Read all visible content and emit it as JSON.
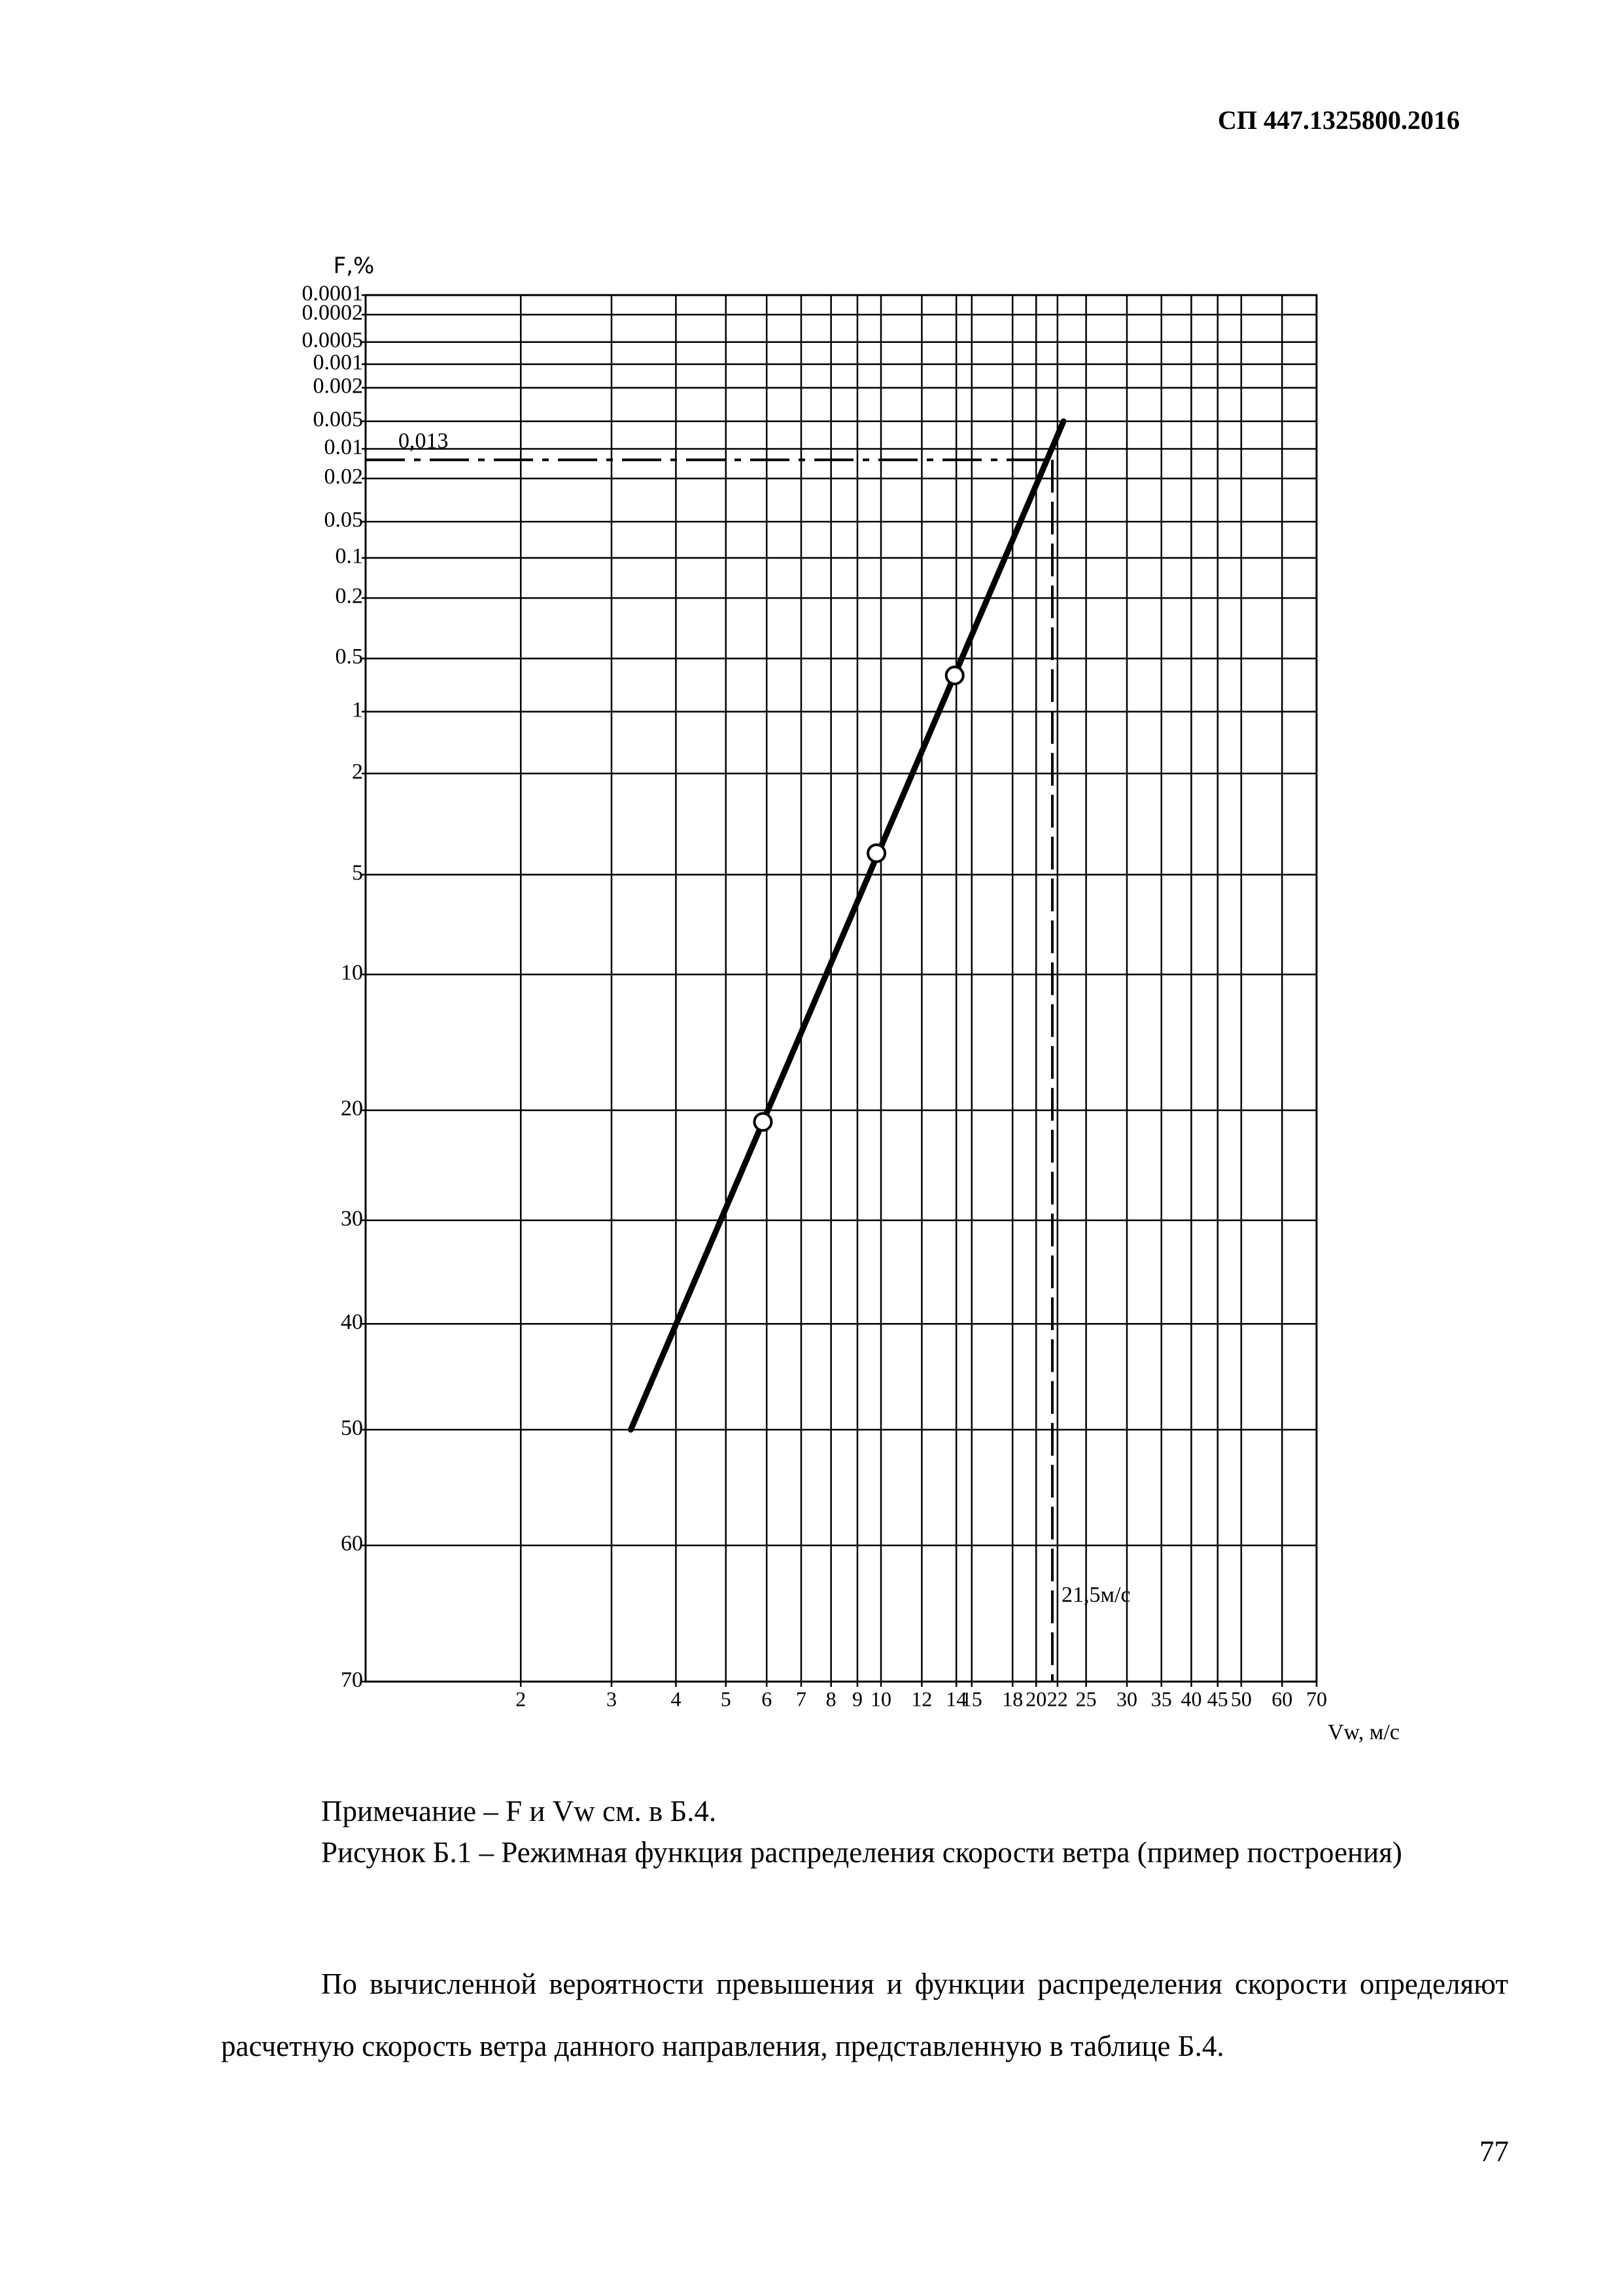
{
  "header": {
    "code": "СП 447.1325800.2016"
  },
  "chart_data": {
    "type": "line",
    "y_label": "F,%",
    "x_label": "Vw, м/с",
    "xscale": "log",
    "yscale": "weibull",
    "xlim": [
      1,
      70
    ],
    "ylim": [
      0.0001,
      70
    ],
    "xticks": [
      2,
      3,
      4,
      5,
      6,
      7,
      8,
      9,
      10,
      12,
      14,
      15,
      18,
      20,
      22,
      25,
      30,
      35,
      40,
      45,
      50,
      60,
      70
    ],
    "yticks": [
      0.0001,
      0.0002,
      0.0005,
      0.001,
      0.002,
      0.005,
      0.01,
      0.02,
      0.05,
      0.1,
      0.2,
      0.5,
      1,
      2,
      5,
      10,
      20,
      30,
      40,
      50,
      60,
      70
    ],
    "grid": true,
    "series": [
      {
        "style": "line",
        "color": "#000000",
        "x": [
          3.27,
          22.6
        ],
        "values": [
          50,
          0.005
        ]
      },
      {
        "style": "markers",
        "color": "#000000",
        "x": [
          5.9,
          9.8,
          13.9
        ],
        "values": [
          21,
          4.2,
          0.63
        ]
      }
    ],
    "annotations": [
      {
        "axis": "y",
        "value": 0.013,
        "label": "0,013"
      },
      {
        "axis": "x",
        "value": 21.5,
        "label": "21,5м/с"
      }
    ]
  },
  "note": "Примечание – F и Vw см. в Б.4.",
  "caption": "Рисунок Б.1 – Режимная функция распределения скорости ветра (пример построения)",
  "paragraph": "По вычисленной вероятности превышения и функции распределения скорости определяют расчетную скорость ветра данного направления, представленную в таблице Б.4.",
  "page_number": "77"
}
